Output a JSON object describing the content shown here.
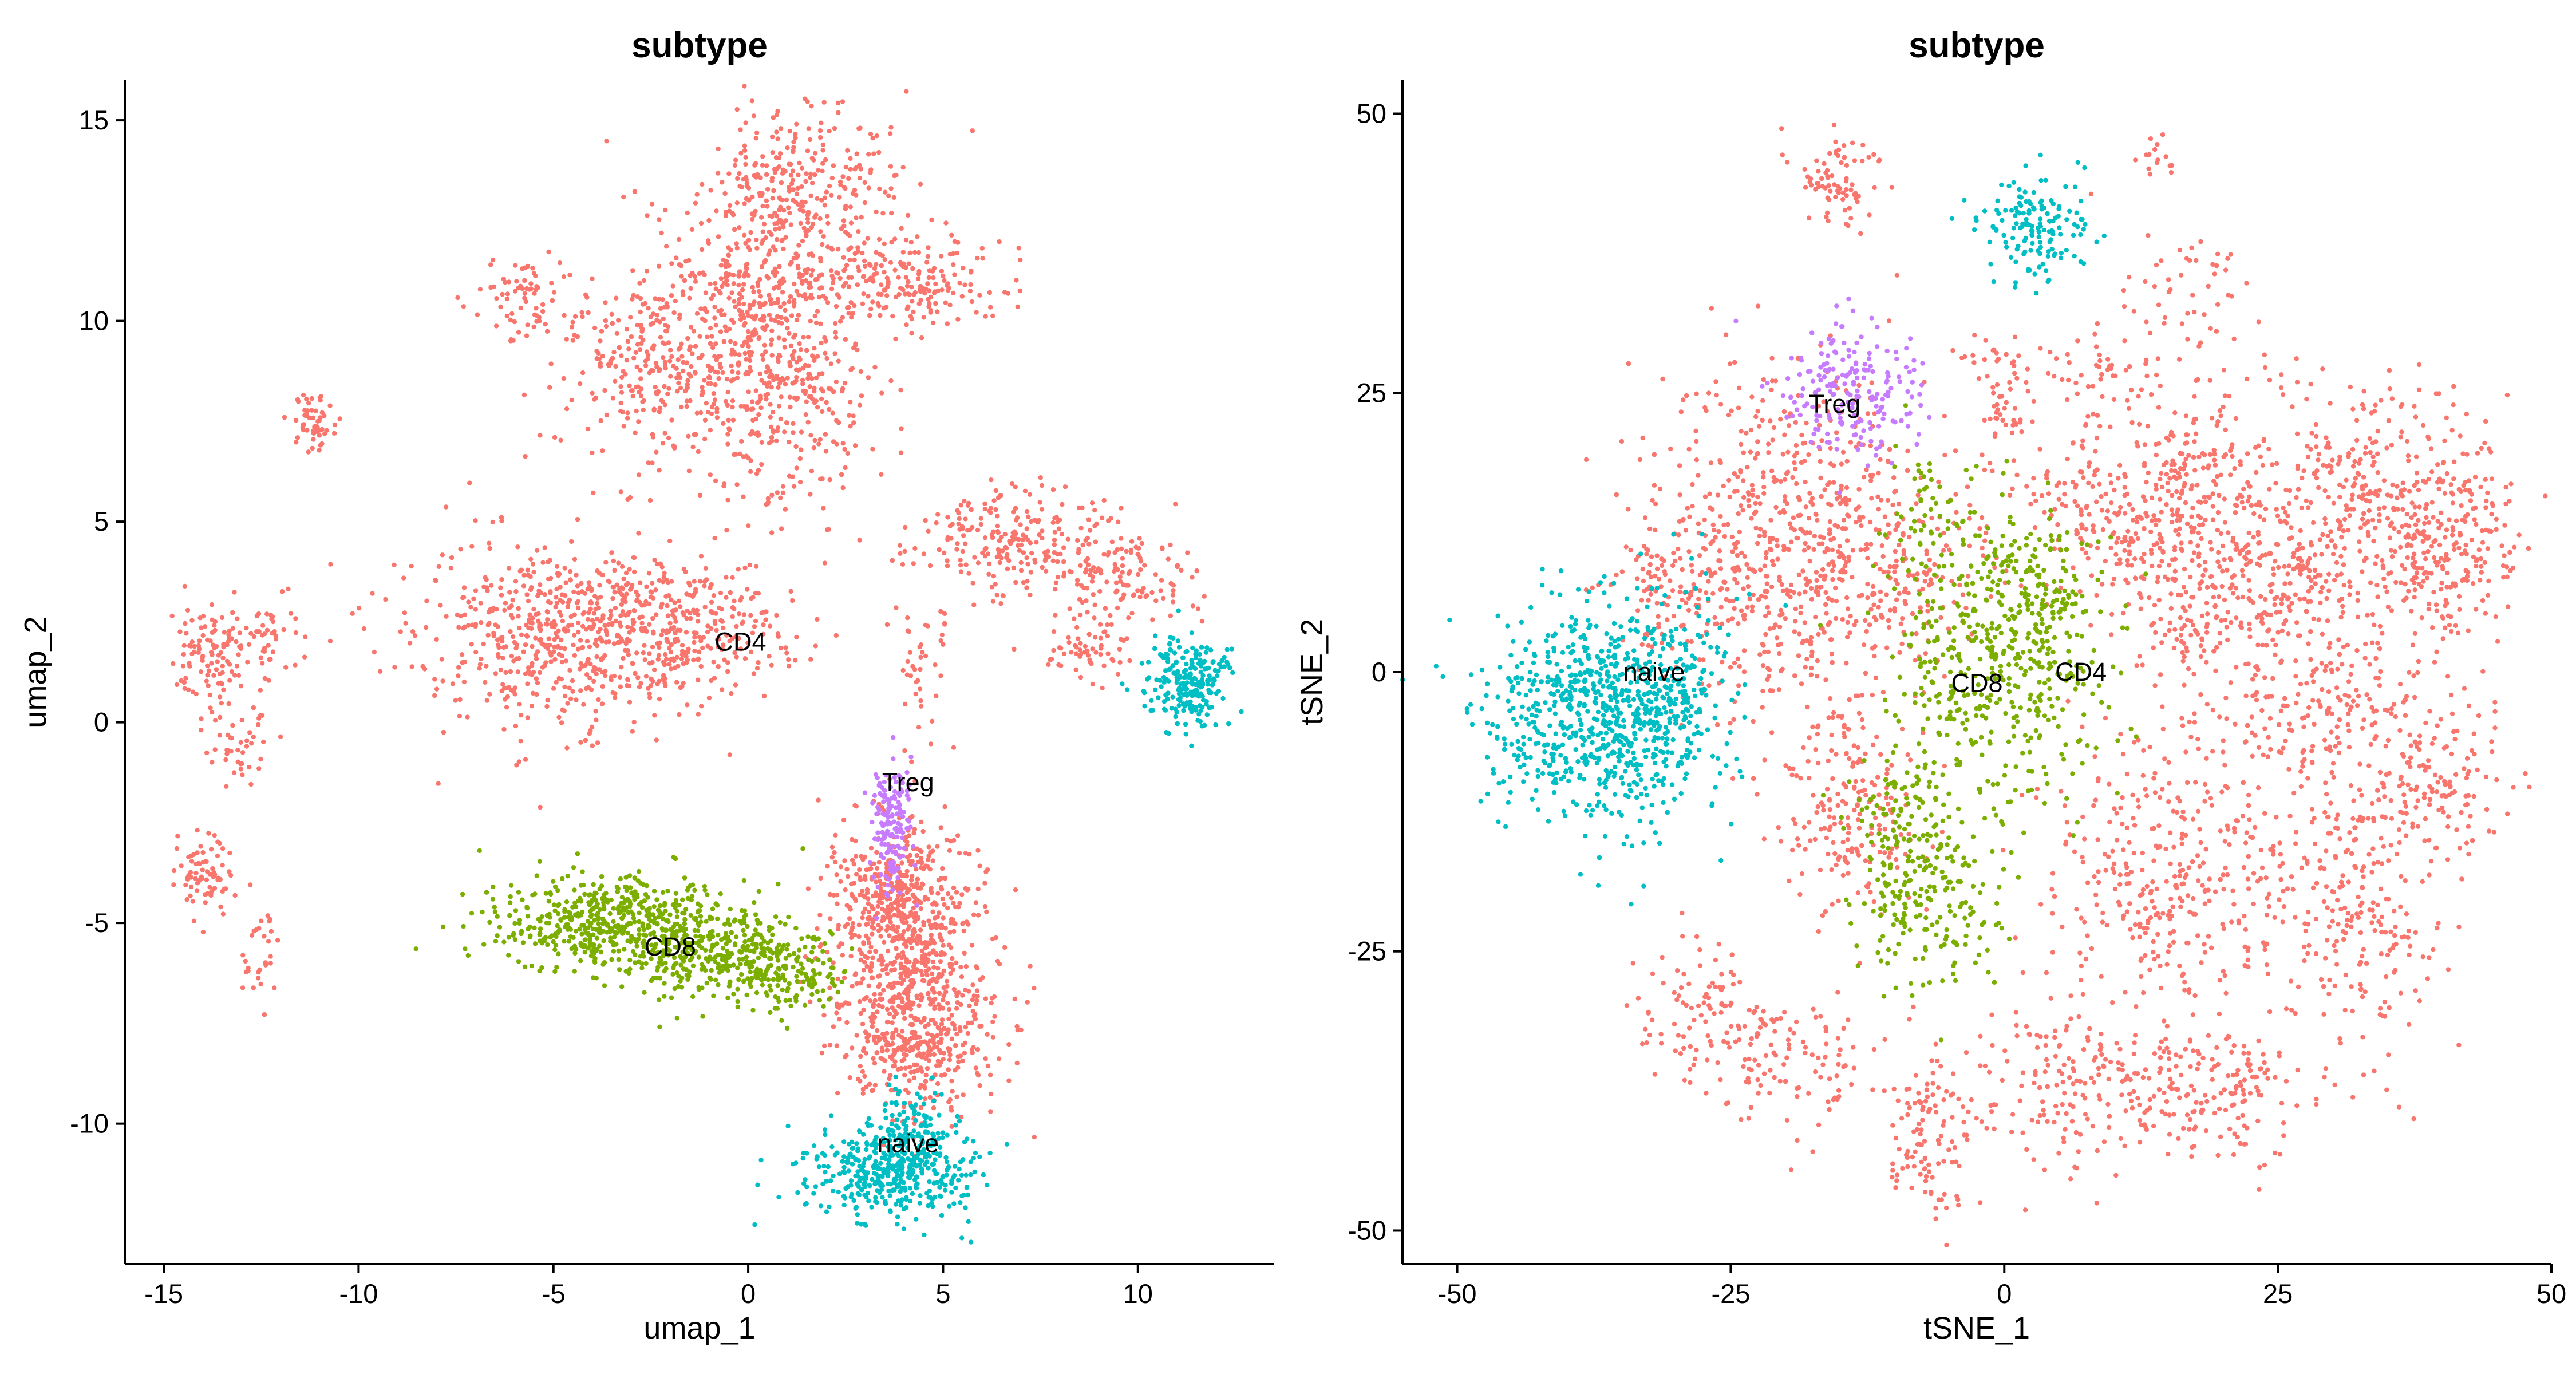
{
  "chart_data": [
    {
      "type": "scatter",
      "title": "subtype",
      "xlabel": "umap_1",
      "ylabel": "umap_2",
      "xlim": [
        -16,
        13.5
      ],
      "ylim": [
        -13.5,
        16
      ],
      "xticks": [
        -15,
        -10,
        -5,
        0,
        5,
        10
      ],
      "yticks": [
        -10,
        -5,
        0,
        5,
        10,
        15
      ],
      "grid": false,
      "legend": "none",
      "series": [
        {
          "name": "CD4",
          "color": "#F8766D",
          "clusters": [
            {
              "cx": 1.5,
              "cy": 13.5,
              "sx": 1.2,
              "sy": 1.0,
              "n": 260
            },
            {
              "cx": 0.5,
              "cy": 11.0,
              "sx": 1.4,
              "sy": 1.1,
              "n": 320
            },
            {
              "cx": 4.3,
              "cy": 11.0,
              "sx": 1.2,
              "sy": 0.6,
              "n": 180
            },
            {
              "cx": -2.0,
              "cy": 9.0,
              "sx": 1.4,
              "sy": 1.2,
              "n": 320
            },
            {
              "cx": 0.8,
              "cy": 8.2,
              "sx": 1.3,
              "sy": 1.4,
              "n": 340
            },
            {
              "cx": -5.8,
              "cy": 10.6,
              "sx": 0.6,
              "sy": 0.5,
              "n": 70
            },
            {
              "cx": -11.1,
              "cy": 7.5,
              "sx": 0.35,
              "sy": 0.4,
              "n": 55
            },
            {
              "cx": -4.8,
              "cy": 2.2,
              "sx": 2.0,
              "sy": 1.2,
              "n": 600
            },
            {
              "cx": -1.5,
              "cy": 2.3,
              "sx": 1.5,
              "sy": 0.8,
              "n": 260
            },
            {
              "cx": 7.0,
              "cy": 4.5,
              "sx": 1.3,
              "sy": 0.7,
              "n": 240
            },
            {
              "cx": 9.6,
              "cy": 3.5,
              "sx": 0.9,
              "sy": 0.6,
              "n": 110
            },
            {
              "cx": 8.5,
              "cy": 1.8,
              "sx": 0.8,
              "sy": 0.4,
              "n": 60
            },
            {
              "cx": 4.5,
              "cy": 1.5,
              "sx": 0.4,
              "sy": 0.9,
              "n": 40
            },
            {
              "cx": -13.8,
              "cy": 1.8,
              "sx": 0.55,
              "sy": 0.7,
              "n": 110
            },
            {
              "cx": -12.2,
              "cy": 2.0,
              "sx": 0.4,
              "sy": 0.6,
              "n": 40
            },
            {
              "cx": -13.2,
              "cy": -0.5,
              "sx": 0.5,
              "sy": 0.5,
              "n": 45
            },
            {
              "cx": -14.0,
              "cy": -3.8,
              "sx": 0.45,
              "sy": 0.5,
              "n": 75
            },
            {
              "cx": -12.5,
              "cy": -5.7,
              "sx": 0.25,
              "sy": 0.6,
              "n": 30
            },
            {
              "cx": 4.0,
              "cy": -5.0,
              "sx": 1.0,
              "sy": 1.4,
              "n": 500
            },
            {
              "cx": 4.3,
              "cy": -7.5,
              "sx": 1.0,
              "sy": 1.2,
              "n": 480
            },
            {
              "cx": 3.6,
              "cy": -4.2,
              "sx": 0.7,
              "sy": 0.5,
              "n": 120
            }
          ]
        },
        {
          "name": "CD8",
          "color": "#7CAE00",
          "clusters": [
            {
              "cx": -3.5,
              "cy": -5.0,
              "sx": 1.5,
              "sy": 0.6,
              "n": 520
            },
            {
              "cx": -0.5,
              "cy": -5.8,
              "sx": 1.1,
              "sy": 0.6,
              "n": 300
            },
            {
              "cx": 1.2,
              "cy": -6.3,
              "sx": 0.6,
              "sy": 0.5,
              "n": 110
            }
          ]
        },
        {
          "name": "naive",
          "color": "#00BFC4",
          "clusters": [
            {
              "cx": 11.3,
              "cy": 1.0,
              "sx": 0.55,
              "sy": 0.55,
              "n": 230
            },
            {
              "cx": 3.6,
              "cy": -11.3,
              "sx": 1.1,
              "sy": 0.55,
              "n": 380
            },
            {
              "cx": 4.2,
              "cy": -10.3,
              "sx": 0.5,
              "sy": 0.6,
              "n": 140
            }
          ]
        },
        {
          "name": "Treg",
          "color": "#C77CFF",
          "clusters": [
            {
              "cx": 3.7,
              "cy": -2.6,
              "sx": 0.25,
              "sy": 0.9,
              "n": 150
            }
          ]
        }
      ],
      "labels": [
        {
          "text": "CD4",
          "x": -0.2,
          "y": 2.0
        },
        {
          "text": "Treg",
          "x": 4.1,
          "y": -1.5
        },
        {
          "text": "CD8",
          "x": -2.0,
          "y": -5.6
        },
        {
          "text": "naive",
          "x": 4.1,
          "y": -10.5
        }
      ]
    },
    {
      "type": "scatter",
      "title": "subtype",
      "xlabel": "tSNE_1",
      "ylabel": "tSNE_2",
      "xlim": [
        -55,
        50
      ],
      "ylim": [
        -53,
        53
      ],
      "xticks": [
        -50,
        -25,
        0,
        25,
        50
      ],
      "yticks": [
        -50,
        -25,
        0,
        25,
        50
      ],
      "grid": false,
      "legend": "none",
      "series": [
        {
          "name": "CD4",
          "color": "#F8766D",
          "clusters": [
            {
              "cx": -15,
              "cy": 44,
              "sx": 2.2,
              "sy": 2.2,
              "n": 80
            },
            {
              "cx": -21,
              "cy": 12,
              "sx": 6,
              "sy": 8,
              "n": 550
            },
            {
              "cx": -10,
              "cy": 10,
              "sx": 5,
              "sy": 5,
              "n": 250
            },
            {
              "cx": -14,
              "cy": -12,
              "sx": 3,
              "sy": 5,
              "n": 200
            },
            {
              "cx": -31,
              "cy": 8,
              "sx": 3,
              "sy": 3,
              "n": 100
            },
            {
              "cx": 8,
              "cy": 15,
              "sx": 4,
              "sy": 4,
              "n": 140
            },
            {
              "cx": 17,
              "cy": 12,
              "sx": 5,
              "sy": 8,
              "n": 420
            },
            {
              "cx": 26,
              "cy": 8,
              "sx": 5,
              "sy": 7,
              "n": 300
            },
            {
              "cx": 35,
              "cy": 15,
              "sx": 5,
              "sy": 5,
              "n": 260
            },
            {
              "cx": 41,
              "cy": 11,
              "sx": 3,
              "sy": 5,
              "n": 200
            },
            {
              "cx": 16,
              "cy": -18,
              "sx": 6,
              "sy": 6,
              "n": 360
            },
            {
              "cx": 32,
              "cy": -20,
              "sx": 4,
              "sy": 8,
              "n": 260
            },
            {
              "cx": 40,
              "cy": -10,
              "sx": 3,
              "sy": 3,
              "n": 120
            },
            {
              "cx": 30,
              "cy": -4,
              "sx": 5,
              "sy": 3,
              "n": 120
            },
            {
              "cx": -28,
              "cy": -30,
              "sx": 3,
              "sy": 3,
              "n": 80
            },
            {
              "cx": -20,
              "cy": -35,
              "sx": 4,
              "sy": 3,
              "n": 120
            },
            {
              "cx": -7,
              "cy": -38,
              "sx": 2,
              "sy": 2,
              "n": 40
            },
            {
              "cx": -7,
              "cy": -44,
              "sx": 2,
              "sy": 3,
              "n": 70
            },
            {
              "cx": 5,
              "cy": -37,
              "sx": 4,
              "sy": 4,
              "n": 130
            },
            {
              "cx": 14,
              "cy": -37,
              "sx": 4,
              "sy": 3,
              "n": 100
            },
            {
              "cx": 21,
              "cy": -38,
              "sx": 3,
              "sy": 3,
              "n": 100
            },
            {
              "cx": -1,
              "cy": 28,
              "sx": 1.8,
              "sy": 1.5,
              "n": 30
            },
            {
              "cx": 0,
              "cy": 23,
              "sx": 1.2,
              "sy": 1.5,
              "n": 30
            },
            {
              "cx": 14,
              "cy": 46,
              "sx": 1.0,
              "sy": 1.0,
              "n": 15
            },
            {
              "cx": 17,
              "cy": 35,
              "sx": 3,
              "sy": 3,
              "n": 40
            },
            {
              "cx": 8,
              "cy": 27,
              "sx": 2,
              "sy": 2,
              "n": 40
            }
          ]
        },
        {
          "name": "CD8",
          "color": "#7CAE00",
          "clusters": [
            {
              "cx": -1,
              "cy": 0,
              "sx": 5,
              "sy": 7,
              "n": 400
            },
            {
              "cx": 3,
              "cy": 6,
              "sx": 3,
              "sy": 4,
              "n": 150
            },
            {
              "cx": -7,
              "cy": -20,
              "sx": 3,
              "sy": 4,
              "n": 200
            },
            {
              "cx": -10,
              "cy": -12,
              "sx": 2,
              "sy": 3,
              "n": 70
            },
            {
              "cx": -7,
              "cy": 13,
              "sx": 2,
              "sy": 4,
              "n": 60
            }
          ]
        },
        {
          "name": "naive",
          "color": "#00BFC4",
          "clusters": [
            {
              "cx": -38,
              "cy": -4,
              "sx": 5,
              "sy": 5,
              "n": 650
            },
            {
              "cx": -31,
              "cy": -3,
              "sx": 3,
              "sy": 5,
              "n": 220
            },
            {
              "cx": 3,
              "cy": 40,
              "sx": 2.5,
              "sy": 2.5,
              "n": 150
            }
          ]
        },
        {
          "name": "Treg",
          "color": "#C77CFF",
          "clusters": [
            {
              "cx": -14,
              "cy": 25,
              "sx": 3,
              "sy": 3,
              "n": 200
            }
          ]
        }
      ],
      "labels": [
        {
          "text": "Treg",
          "x": -15.5,
          "y": 24
        },
        {
          "text": "naive",
          "x": -32,
          "y": 0
        },
        {
          "text": "CD8",
          "x": -2.5,
          "y": -1
        },
        {
          "text": "CD4",
          "x": 7,
          "y": 0
        }
      ]
    }
  ]
}
